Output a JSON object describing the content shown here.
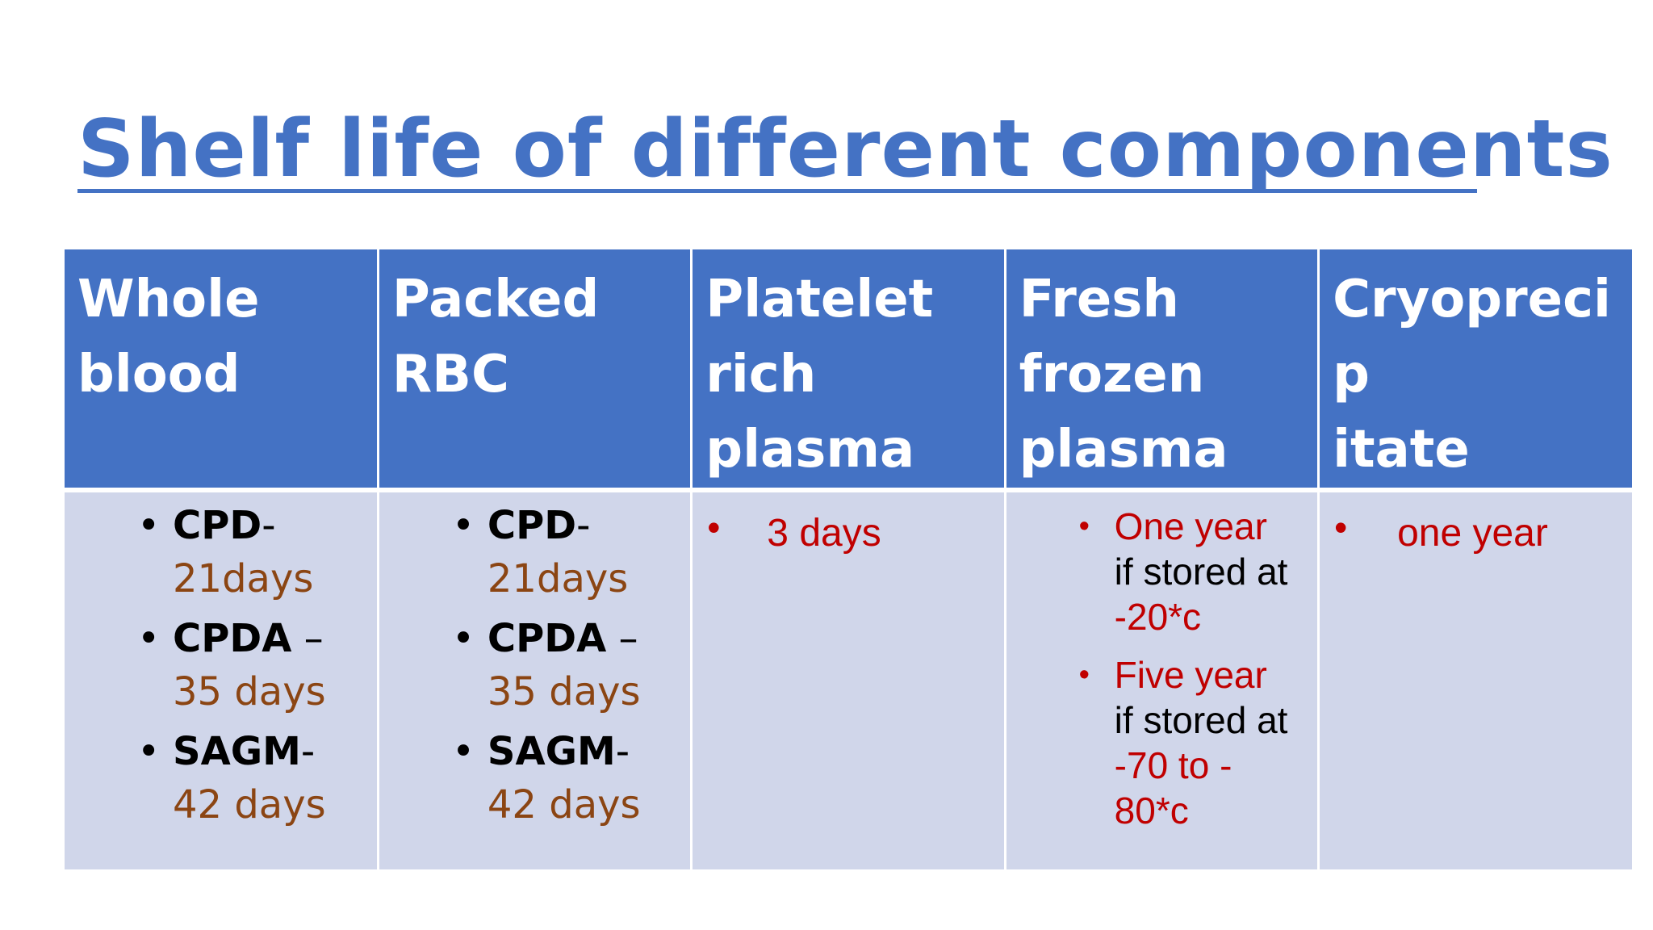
{
  "title": "Shelf life of different components",
  "headers": [
    "Whole blood",
    "Packed RBC",
    "Platelet rich plasma",
    "Fresh frozen plasma",
    "Cryoprecipitate"
  ],
  "header_lines": [
    [
      "Whole",
      "blood"
    ],
    [
      "Packed",
      "RBC"
    ],
    [
      "Platelet",
      "rich",
      "plasma"
    ],
    [
      "Fresh",
      "frozen",
      "plasma"
    ],
    [
      "Cryoprecip",
      "itate"
    ]
  ],
  "whole_blood": [
    {
      "code": "CPD",
      "sep": "-",
      "value": "21days"
    },
    {
      "code": "CPDA",
      "sep": " –",
      "value": "35 days"
    },
    {
      "code": "SAGM",
      "sep": "-",
      "value": "42 days"
    }
  ],
  "packed_rbc": [
    {
      "code": "CPD",
      "sep": "-",
      "value": "21days"
    },
    {
      "code": "CPDA",
      "sep": " –",
      "value": "35 days"
    },
    {
      "code": "SAGM",
      "sep": "-",
      "value": "42 days"
    }
  ],
  "platelet": "3 days",
  "ffp": [
    {
      "duration": "One year",
      "condition": "if stored at",
      "temp": "-20*c"
    },
    {
      "duration": "Five year",
      "condition": "if stored at",
      "temp": "-70 to - 80*c"
    }
  ],
  "cryo": "one year",
  "colors": {
    "accent": "#4472c4",
    "cell_bg": "#d0d6ea",
    "value_brown": "#8b4513",
    "value_red": "#c00000"
  }
}
